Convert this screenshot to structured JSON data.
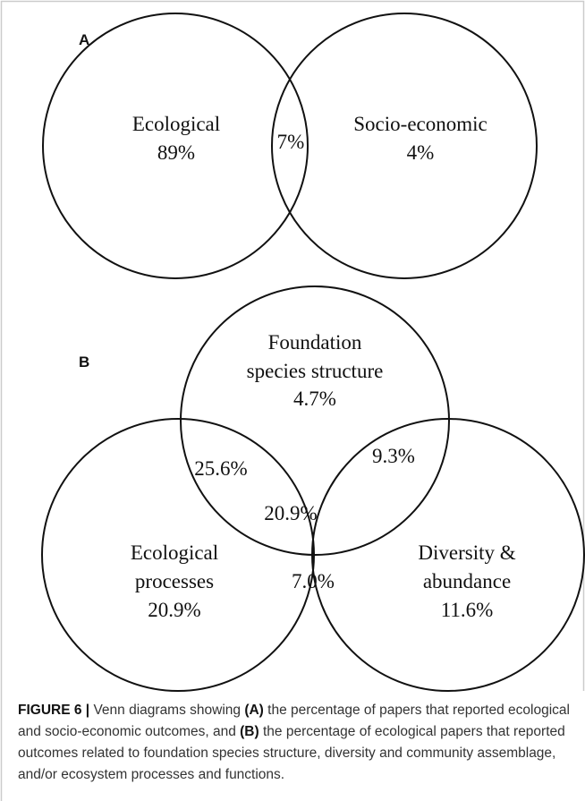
{
  "panel_a": {
    "label": "A",
    "left": {
      "title": "Ecological",
      "value": "89%"
    },
    "overlap": "7%",
    "right": {
      "title": "Socio-economic",
      "value": "4%"
    }
  },
  "panel_b": {
    "label": "B",
    "top": {
      "lines": [
        "Foundation",
        "species structure"
      ],
      "value": "4.7%"
    },
    "left": {
      "lines": [
        "Ecological",
        "processes"
      ],
      "value": "20.9%"
    },
    "right": {
      "lines": [
        "Diversity &",
        "abundance"
      ],
      "value": "11.6%"
    },
    "top_left": "25.6%",
    "top_right": "9.3%",
    "center": "20.9%",
    "left_right": "7.0%"
  },
  "caption": [
    {
      "text": "FIGURE 6 |",
      "bold": true
    },
    {
      "text": " Venn diagrams showing ",
      "bold": false
    },
    {
      "text": "(A)",
      "bold": true
    },
    {
      "text": " the percentage of papers that reported ecological and socio-economic outcomes, and ",
      "bold": false
    },
    {
      "text": "(B)",
      "bold": true
    },
    {
      "text": " the percentage of ecological papers that reported outcomes related to foundation species structure, diversity and community assemblage, and/or ecosystem processes and functions.",
      "bold": false
    }
  ]
}
